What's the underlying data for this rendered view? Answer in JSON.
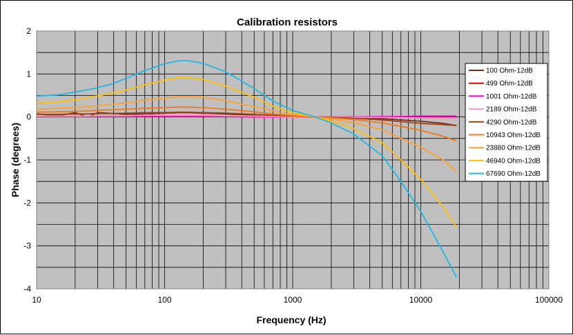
{
  "chart_data": {
    "type": "line",
    "title": "Calibration resistors",
    "xlabel": "Frequency (Hz)",
    "ylabel": "Phase (degrees)",
    "x_scale": "log",
    "xlim": [
      10,
      100000
    ],
    "ylim": [
      -4,
      2
    ],
    "x_ticks": [
      "10",
      "100",
      "1000",
      "10000",
      "100000"
    ],
    "y_ticks": [
      "2",
      "1",
      "0",
      "-1",
      "-2",
      "-3",
      "-4"
    ],
    "grid": true,
    "legend_position": "right",
    "x": [
      10,
      15,
      20,
      25,
      30,
      40,
      50,
      70,
      100,
      130,
      150,
      200,
      300,
      500,
      700,
      1000,
      1500,
      2000,
      3000,
      5000,
      7000,
      10000,
      15000,
      19000
    ],
    "series": [
      {
        "name": "100 Ohm-12dB",
        "color": "#7a2a1a",
        "values": [
          0.07,
          0.03,
          0.1,
          0.0,
          0.1,
          0.08,
          0.06,
          0.07,
          0.09,
          0.1,
          0.1,
          0.09,
          0.07,
          0.04,
          0.02,
          0.01,
          0.0,
          -0.01,
          -0.02,
          -0.04,
          -0.07,
          -0.1,
          -0.15,
          -0.2
        ]
      },
      {
        "name": "499 Ohm-12dB",
        "color": "#e00000",
        "values": [
          0.02,
          0.02,
          0.02,
          0.02,
          0.02,
          0.02,
          0.02,
          0.02,
          0.02,
          0.02,
          0.02,
          0.02,
          0.01,
          0.01,
          0.01,
          0.0,
          0.0,
          0.0,
          0.0,
          -0.01,
          -0.01,
          -0.02,
          -0.03,
          -0.04
        ]
      },
      {
        "name": "1001 Ohm-12dB",
        "color": "#ff00c0",
        "values": [
          0.01,
          0.01,
          0.01,
          0.01,
          0.01,
          0.01,
          0.01,
          0.01,
          0.01,
          0.01,
          0.01,
          0.01,
          0.01,
          0.0,
          0.0,
          0.0,
          0.0,
          0.0,
          0.0,
          0.01,
          0.01,
          0.02,
          0.02,
          0.02
        ]
      },
      {
        "name": "2189 Ohm-12dB",
        "color": "#ff99cc",
        "values": [
          0.02,
          0.02,
          0.02,
          0.02,
          0.03,
          0.03,
          0.03,
          0.04,
          0.04,
          0.04,
          0.04,
          0.04,
          0.03,
          0.02,
          0.01,
          0.0,
          0.0,
          0.0,
          -0.01,
          -0.01,
          -0.02,
          -0.02,
          -0.03,
          -0.04
        ]
      },
      {
        "name": "4290 Ohm-12dB",
        "color": "#a04010",
        "values": [
          0.06,
          0.06,
          0.07,
          0.07,
          0.08,
          0.08,
          0.09,
          0.1,
          0.1,
          0.11,
          0.11,
          0.1,
          0.09,
          0.06,
          0.04,
          0.02,
          0.0,
          -0.01,
          -0.03,
          -0.07,
          -0.11,
          -0.15,
          -0.18,
          -0.2
        ]
      },
      {
        "name": "10943 Ohm-12dB",
        "color": "#f07818",
        "values": [
          0.11,
          0.12,
          0.13,
          0.14,
          0.15,
          0.17,
          0.18,
          0.2,
          0.22,
          0.23,
          0.23,
          0.22,
          0.18,
          0.12,
          0.07,
          0.03,
          0.0,
          -0.02,
          -0.06,
          -0.14,
          -0.22,
          -0.31,
          -0.45,
          -0.56
        ]
      },
      {
        "name": "23880 Ohm-12dB",
        "color": "#ffa030",
        "values": [
          0.18,
          0.2,
          0.22,
          0.24,
          0.26,
          0.3,
          0.33,
          0.39,
          0.44,
          0.47,
          0.47,
          0.46,
          0.38,
          0.24,
          0.14,
          0.06,
          0.0,
          -0.05,
          -0.13,
          -0.3,
          -0.5,
          -0.7,
          -1.0,
          -1.28
        ]
      },
      {
        "name": "46940 Ohm-12dB",
        "color": "#ffc000",
        "values": [
          0.32,
          0.36,
          0.4,
          0.45,
          0.49,
          0.56,
          0.63,
          0.75,
          0.86,
          0.92,
          0.92,
          0.87,
          0.72,
          0.46,
          0.25,
          0.1,
          0.0,
          -0.1,
          -0.27,
          -0.6,
          -1.0,
          -1.45,
          -2.1,
          -2.57
        ]
      },
      {
        "name": "67690 Ohm-12dB",
        "color": "#20b8e0",
        "values": [
          0.48,
          0.52,
          0.58,
          0.63,
          0.68,
          0.78,
          0.9,
          1.08,
          1.24,
          1.31,
          1.31,
          1.25,
          1.05,
          0.66,
          0.37,
          0.15,
          0.0,
          -0.14,
          -0.4,
          -0.9,
          -1.5,
          -2.2,
          -3.15,
          -3.73
        ]
      }
    ]
  }
}
